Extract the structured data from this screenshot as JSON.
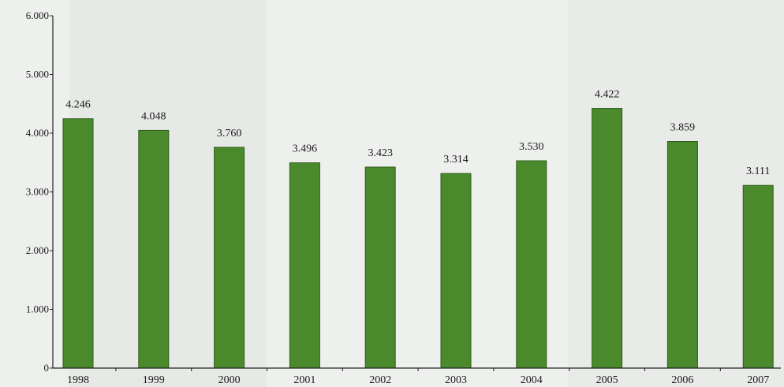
{
  "chart_data": {
    "type": "bar",
    "title": "",
    "xlabel": "",
    "ylabel": "",
    "categories": [
      "1998",
      "1999",
      "2000",
      "2001",
      "2002",
      "2003",
      "2004",
      "2005",
      "2006",
      "2007"
    ],
    "values": [
      4246,
      4048,
      3760,
      3496,
      3423,
      3314,
      3530,
      4422,
      3859,
      3111
    ],
    "value_labels": [
      "4.246",
      "4.048",
      "3.760",
      "3.496",
      "3.423",
      "3.314",
      "3.530",
      "4.422",
      "3.859",
      "3.111"
    ],
    "ylim": [
      0,
      6000
    ],
    "yticks": [
      0,
      1000,
      2000,
      3000,
      4000,
      5000,
      6000
    ],
    "ytick_labels": [
      "0",
      "1.000",
      "2.000",
      "3.000",
      "4.000",
      "5.000",
      "6.000"
    ],
    "grid": false,
    "legend": "none",
    "bar_color": "#4b8a2c",
    "bar_edge_color": "#2f5c1a",
    "axis_color": "#222222"
  }
}
